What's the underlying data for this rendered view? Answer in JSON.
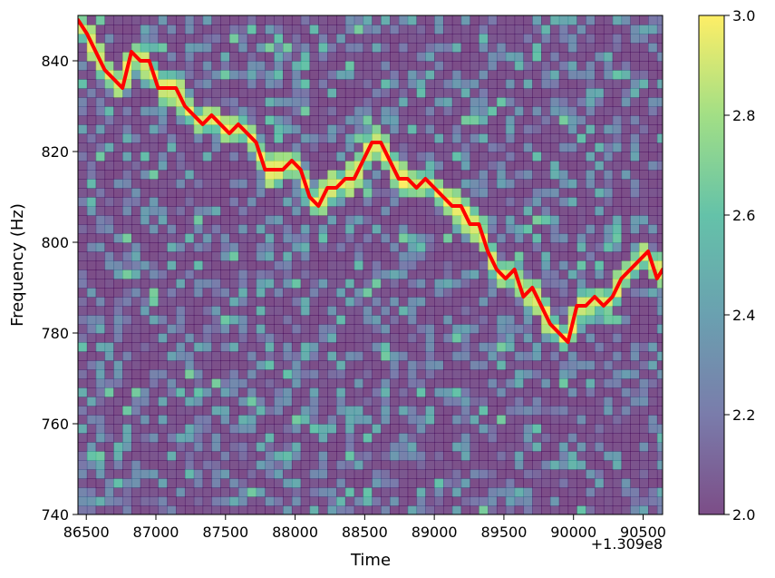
{
  "chart_data": {
    "type": "heatmap",
    "xlabel": "Time",
    "ylabel": "Frequency (Hz)",
    "x_offset_label": "+1.309e8",
    "xlim": [
      86440,
      90640
    ],
    "ylim": [
      740,
      850
    ],
    "x_ticks": [
      86500,
      87000,
      87500,
      88000,
      88500,
      89000,
      89500,
      90000,
      90500
    ],
    "y_ticks": [
      740,
      760,
      780,
      800,
      820,
      840
    ],
    "x_tick_labels": [
      "86500",
      "87000",
      "87500",
      "88000",
      "88500",
      "89000",
      "89500",
      "90000",
      "90500"
    ],
    "y_tick_labels": [
      "740",
      "760",
      "780",
      "800",
      "820",
      "840"
    ],
    "grid": {
      "x_start": 86440,
      "x_step": 64,
      "x_count": 66,
      "y_start": 740,
      "y_step": 2,
      "y_count": 55
    },
    "colorbar": {
      "vmin": 2.0,
      "vmax": 3.0,
      "ticks": [
        2.0,
        2.2,
        2.4,
        2.6,
        2.8,
        3.0
      ],
      "tick_labels": [
        "2.0",
        "2.2",
        "2.4",
        "2.6",
        "2.8",
        "3.0"
      ],
      "colormap": "viridis",
      "alpha": 0.7
    },
    "track": {
      "color": "#ff0000",
      "x": [
        86440,
        86504,
        86568,
        86632,
        86696,
        86760,
        86824,
        86888,
        86952,
        87016,
        87080,
        87144,
        87208,
        87272,
        87336,
        87400,
        87464,
        87528,
        87592,
        87656,
        87720,
        87784,
        87848,
        87912,
        87976,
        88040,
        88104,
        88168,
        88232,
        88296,
        88360,
        88424,
        88488,
        88552,
        88616,
        88680,
        88744,
        88808,
        88872,
        88936,
        89000,
        89064,
        89128,
        89192,
        89256,
        89320,
        89384,
        89448,
        89512,
        89576,
        89640,
        89704,
        89768,
        89832,
        89896,
        89960,
        90024,
        90088,
        90152,
        90216,
        90280,
        90344,
        90408,
        90472,
        90536,
        90600,
        90640
      ],
      "y": [
        849,
        846,
        842,
        838,
        836,
        834,
        842,
        840,
        840,
        834,
        834,
        834,
        830,
        828,
        826,
        828,
        826,
        824,
        826,
        824,
        822,
        816,
        816,
        816,
        818,
        816,
        810,
        808,
        812,
        812,
        814,
        814,
        818,
        822,
        822,
        818,
        814,
        814,
        812,
        814,
        812,
        810,
        808,
        808,
        804,
        804,
        798,
        794,
        792,
        794,
        788,
        790,
        786,
        782,
        780,
        778,
        786,
        786,
        788,
        786,
        788,
        792,
        794,
        796,
        798,
        792,
        794
      ]
    }
  }
}
